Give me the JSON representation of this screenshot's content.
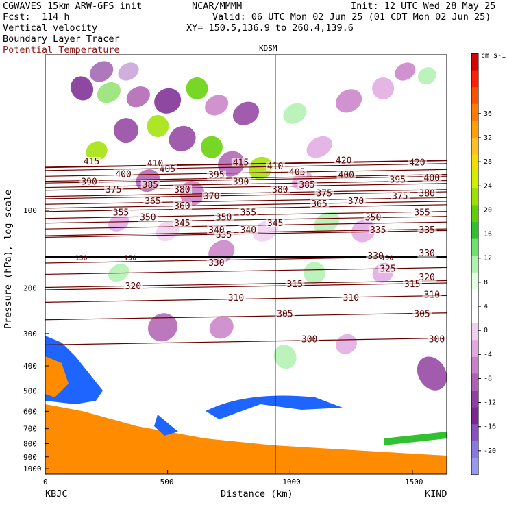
{
  "header": {
    "model": "CGWAVES 15km ARW-GFS init",
    "forecast": "Fcst:  114 h",
    "field1": "Vertical velocity",
    "field2": "Boundary Layer Tracer",
    "field3": "Potential Temperature",
    "center": "NCAR/MMMM",
    "init": "Init: 12 UTC Wed 28 May 25",
    "valid": "Valid: 06 UTC Mon 02 Jun 25 (01 CDT Mon 02 Jun 25)",
    "xy": "XY= 150.5,136.9 to 260.4,139.6"
  },
  "colors": {
    "theta_line": "#6b0000",
    "field3_text": "#8b1a1a",
    "tropopause": "#000000"
  },
  "chart_data": {
    "type": "heatmap",
    "xlabel": "Distance (km)",
    "ylabel": "Pressure (hPa), log scale",
    "x_ticks": [
      0,
      500,
      1000,
      1500
    ],
    "xlim": [
      0,
      1640
    ],
    "y_scale": "log",
    "y_ticks": [
      100,
      200,
      300,
      400,
      500,
      600,
      700,
      800,
      900,
      1000
    ],
    "ylim": [
      1050,
      25
    ],
    "left_station": "KBJC",
    "right_station": "KIND",
    "marker_station": "KDSM",
    "marker_x_km": 940,
    "colorbar": {
      "unit": "cm s-1",
      "labels": [
        36,
        32,
        28,
        24,
        20,
        16,
        12,
        8,
        4,
        0,
        -4,
        -8,
        -12,
        -16,
        -20
      ],
      "colors": [
        "#d80000",
        "#ff2000",
        "#ff5000",
        "#ff7a00",
        "#ffa000",
        "#ffc020",
        "#f0e000",
        "#d0f000",
        "#a0e000",
        "#60d000",
        "#30c030",
        "#70e070",
        "#b0f0b0",
        "#e0ffe0",
        "#ffffff",
        "#ffffff",
        "#f0d0f0",
        "#e0a8e0",
        "#c880c8",
        "#b060b0",
        "#9040a0",
        "#7a2890",
        "#8a50c0",
        "#8a78e0",
        "#9898f0"
      ]
    },
    "contours_theta": [
      {
        "value": 300,
        "labels_at": [
          [
            1080,
            2960
          ],
          [
            1600,
            2960
          ]
        ]
      },
      {
        "value": 305,
        "labels_at": [
          [
            980,
            2700
          ],
          [
            1540,
            2700
          ]
        ]
      },
      {
        "value": 310,
        "labels_at": [
          [
            780,
            2530
          ],
          [
            1250,
            2530
          ],
          [
            1580,
            2500
          ]
        ]
      },
      {
        "value": 315,
        "labels_at": [
          [
            1020,
            2390
          ],
          [
            1500,
            2390
          ]
        ]
      },
      {
        "value": 320,
        "labels_at": [
          [
            360,
            2410
          ],
          [
            1560,
            2320
          ]
        ]
      },
      {
        "value": 325,
        "labels_at": [
          [
            1400,
            2230
          ]
        ]
      },
      {
        "value": 330,
        "labels_at": [
          [
            700,
            2170
          ],
          [
            1350,
            2100
          ],
          [
            1560,
            2070
          ]
        ]
      },
      {
        "value": 335,
        "labels_at": [
          [
            730,
            1880
          ],
          [
            1360,
            1830
          ],
          [
            1560,
            1830
          ]
        ]
      },
      {
        "value": 340,
        "labels_at": [
          [
            700,
            1830
          ],
          [
            830,
            1830
          ]
        ]
      },
      {
        "value": 345,
        "labels_at": [
          [
            560,
            1760
          ],
          [
            940,
            1760
          ]
        ]
      },
      {
        "value": 350,
        "labels_at": [
          [
            420,
            1700
          ],
          [
            730,
            1700
          ],
          [
            1340,
            1700
          ]
        ]
      },
      {
        "value": 355,
        "labels_at": [
          [
            310,
            1650
          ],
          [
            830,
            1650
          ],
          [
            1540,
            1650
          ]
        ]
      },
      {
        "value": 360,
        "labels_at": [
          [
            560,
            1580
          ]
        ]
      },
      {
        "value": 365,
        "labels_at": [
          [
            440,
            1530
          ],
          [
            1120,
            1560
          ]
        ]
      },
      {
        "value": 370,
        "labels_at": [
          [
            680,
            1480
          ],
          [
            1270,
            1530
          ]
        ]
      },
      {
        "value": 375,
        "labels_at": [
          [
            280,
            1410
          ],
          [
            1140,
            1450
          ],
          [
            1450,
            1480
          ]
        ]
      },
      {
        "value": 380,
        "labels_at": [
          [
            560,
            1410
          ],
          [
            960,
            1410
          ],
          [
            1560,
            1450
          ]
        ]
      },
      {
        "value": 385,
        "labels_at": [
          [
            430,
            1360
          ],
          [
            1070,
            1360
          ]
        ]
      },
      {
        "value": 390,
        "labels_at": [
          [
            180,
            1330
          ],
          [
            800,
            1330
          ]
        ]
      },
      {
        "value": 395,
        "labels_at": [
          [
            700,
            1260
          ],
          [
            1440,
            1310
          ]
        ]
      },
      {
        "value": 400,
        "labels_at": [
          [
            320,
            1250
          ],
          [
            1230,
            1260
          ],
          [
            1580,
            1290
          ]
        ]
      },
      {
        "value": 405,
        "labels_at": [
          [
            500,
            1200
          ],
          [
            1030,
            1230
          ]
        ]
      },
      {
        "value": 410,
        "labels_at": [
          [
            450,
            1140
          ],
          [
            940,
            1170
          ]
        ]
      },
      {
        "value": 415,
        "labels_at": [
          [
            190,
            1120
          ],
          [
            800,
            1130
          ]
        ]
      },
      {
        "value": 420,
        "labels_at": [
          [
            1220,
            1110
          ],
          [
            1520,
            1130
          ]
        ]
      }
    ],
    "tropopause_pressure_hPa": 152,
    "tropopause_labels": [
      "150",
      "150",
      "150"
    ],
    "tropopause_labels_at": [
      [
        150,
        1520
      ],
      [
        350,
        1520
      ],
      [
        1400,
        1520
      ]
    ]
  }
}
